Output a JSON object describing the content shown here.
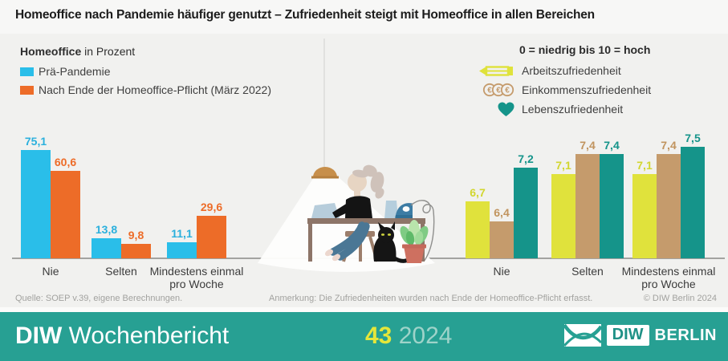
{
  "title": "Homeoffice nach Pandemie häufiger genutzt – Zufriedenheit steigt mit Homeoffice in allen Bereichen",
  "chart_data": [
    {
      "type": "bar",
      "title": "Homeoffice in Prozent",
      "title_bold": "Homeoffice",
      "title_rest": " in Prozent",
      "categories": [
        "Nie",
        "Selten",
        "Mindestens einmal pro Woche"
      ],
      "series": [
        {
          "name": "Prä-Pandemie",
          "color": "#2abee9",
          "label_color": "#2ab0dd",
          "values": [
            75.1,
            13.8,
            11.1
          ]
        },
        {
          "name": "Nach Ende der Homeoffice-Pflicht (März 2022)",
          "color": "#ed6c28",
          "label_color": "#ed6c28",
          "values": [
            60.6,
            9.8,
            29.6
          ]
        }
      ],
      "value_labels": [
        [
          "75,1",
          "13,8",
          "11,1"
        ],
        [
          "60,6",
          "9,8",
          "29,6"
        ]
      ],
      "ylabel": "Prozent",
      "ylim": [
        0,
        80
      ],
      "grid": false,
      "legend_position": "top-left"
    },
    {
      "type": "bar",
      "title": "0 = niedrig bis 10 = hoch",
      "categories": [
        "Nie",
        "Selten",
        "Mindestens einmal pro Woche"
      ],
      "series": [
        {
          "name": "Arbeitszufriedenheit",
          "icon": "pencil-icon",
          "color": "#e0e23c",
          "label_color": "#d2d62f",
          "values": [
            6.7,
            7.1,
            7.1
          ]
        },
        {
          "name": "Einkommenszufriedenheit",
          "icon": "coins-icon",
          "color": "#c59b6c",
          "label_color": "#c1945f",
          "values": [
            6.4,
            7.4,
            7.4
          ]
        },
        {
          "name": "Lebenszufriedenheit",
          "icon": "heart-icon",
          "color": "#15948a",
          "label_color": "#15948a",
          "values": [
            7.2,
            7.4,
            7.5
          ]
        }
      ],
      "value_labels": [
        [
          "6,7",
          "7,1",
          "7,1"
        ],
        [
          "6,4",
          "7,4",
          "7,4"
        ],
        [
          "7,2",
          "7,4",
          "7,5"
        ]
      ],
      "scale_note": "0 = niedrig bis 10 = hoch",
      "ylim": [
        5.8,
        8
      ],
      "grid": false,
      "legend_position": "top"
    }
  ],
  "footer": {
    "source": "Quelle: SOEP v.39, eigene Berechnungen.",
    "note": "Anmerkung: Die Zufriedenheiten wurden nach Ende der Homeoffice-Pflicht erfasst.",
    "copyright": "© DIW Berlin 2024"
  },
  "banner": {
    "publication_bold": "DIW",
    "publication_rest": " Wochenbericht",
    "issue": "43",
    "year": " 2024",
    "logo_text_diw": "DIW",
    "logo_text_berlin": "BERLIN",
    "colors": {
      "bar_background": "#27a093",
      "issue_number": "#e5e63a",
      "issue_year": "#9ed3c9"
    }
  },
  "illustration": {
    "alt": "Person am Schreibtisch im Homeoffice mit Laptop, Lampe, Katze, Pflanze und Bügeleisen"
  }
}
